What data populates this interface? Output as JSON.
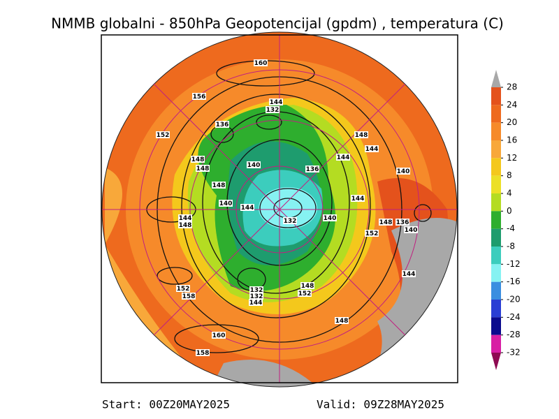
{
  "title": "NMMB globalni - 850hPa Geopotencijal (gpdm) , temperatura (C)",
  "colorbar": {
    "ticks": [
      28,
      24,
      20,
      16,
      12,
      8,
      4,
      0,
      -4,
      -8,
      -12,
      -16,
      -20,
      -24,
      -28,
      -32
    ],
    "colors": [
      "#a8a8a8",
      "#e4521c",
      "#ee6a1e",
      "#f68a2a",
      "#f8a83a",
      "#f4c81c",
      "#ece026",
      "#b4dc22",
      "#2eae2e",
      "#1e9c6e",
      "#3ccdbd",
      "#86f2f2",
      "#3a8ee0",
      "#2a3ed4",
      "#0a0a8e",
      "#d81ea4",
      "#8e0a52"
    ]
  },
  "contour_labels": [
    160,
    156,
    144,
    132,
    136,
    152,
    148,
    144,
    144,
    148,
    148,
    140,
    136,
    140,
    148,
    144,
    140,
    144,
    144,
    148,
    132,
    140,
    148,
    136,
    140,
    152,
    144,
    148,
    152,
    132,
    158,
    132,
    152,
    144,
    148,
    160,
    158
  ],
  "footer": {
    "start": "Start: 00Z20MAY2025",
    "valid": "Valid: 09Z28MAY2025"
  }
}
